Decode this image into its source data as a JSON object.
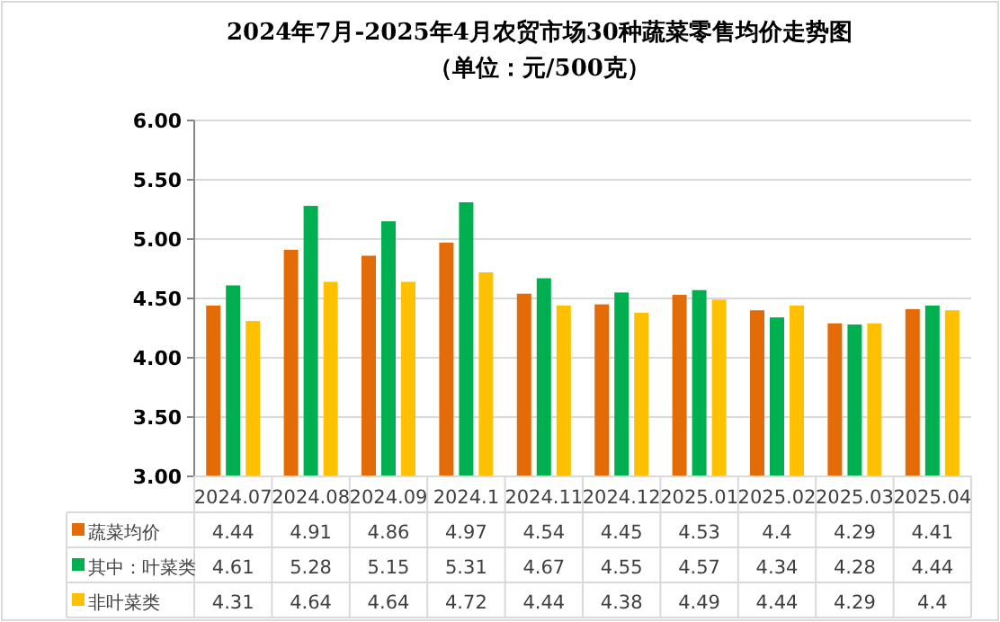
{
  "chart_data": {
    "type": "bar",
    "title": "2024年7月-2025年4月农贸市场30种蔬菜零售均价走势图",
    "subtitle": "（单位：元/500克）",
    "categories": [
      "2024.07",
      "2024.08",
      "2024.09",
      "2024.1",
      "2024.11",
      "2024.12",
      "2025.01",
      "2025.02",
      "2025.03",
      "2025.04"
    ],
    "series": [
      {
        "name": "蔬菜均价",
        "color": "#e36c09",
        "values": [
          4.44,
          4.91,
          4.86,
          4.97,
          4.54,
          4.45,
          4.53,
          4.4,
          4.29,
          4.41
        ]
      },
      {
        "name": "其中：叶菜类",
        "color": "#00b050",
        "values": [
          4.61,
          5.28,
          5.15,
          5.31,
          4.67,
          4.55,
          4.57,
          4.34,
          4.28,
          4.44
        ]
      },
      {
        "name": "非叶菜类",
        "color": "#ffc000",
        "values": [
          4.31,
          4.64,
          4.64,
          4.72,
          4.44,
          4.38,
          4.49,
          4.44,
          4.29,
          4.4
        ]
      }
    ],
    "ylim": [
      3,
      6
    ],
    "yticks": [
      {
        "value": 3,
        "label": "3.00"
      },
      {
        "value": 3.5,
        "label": "3.50"
      },
      {
        "value": 4,
        "label": "4.00"
      },
      {
        "value": 4.5,
        "label": "4.50"
      },
      {
        "value": 5,
        "label": "5.00"
      },
      {
        "value": 5.5,
        "label": "5.50"
      },
      {
        "value": 6,
        "label": "6.00"
      }
    ],
    "grid": "y",
    "data_labels": true,
    "legend": "bottom"
  }
}
